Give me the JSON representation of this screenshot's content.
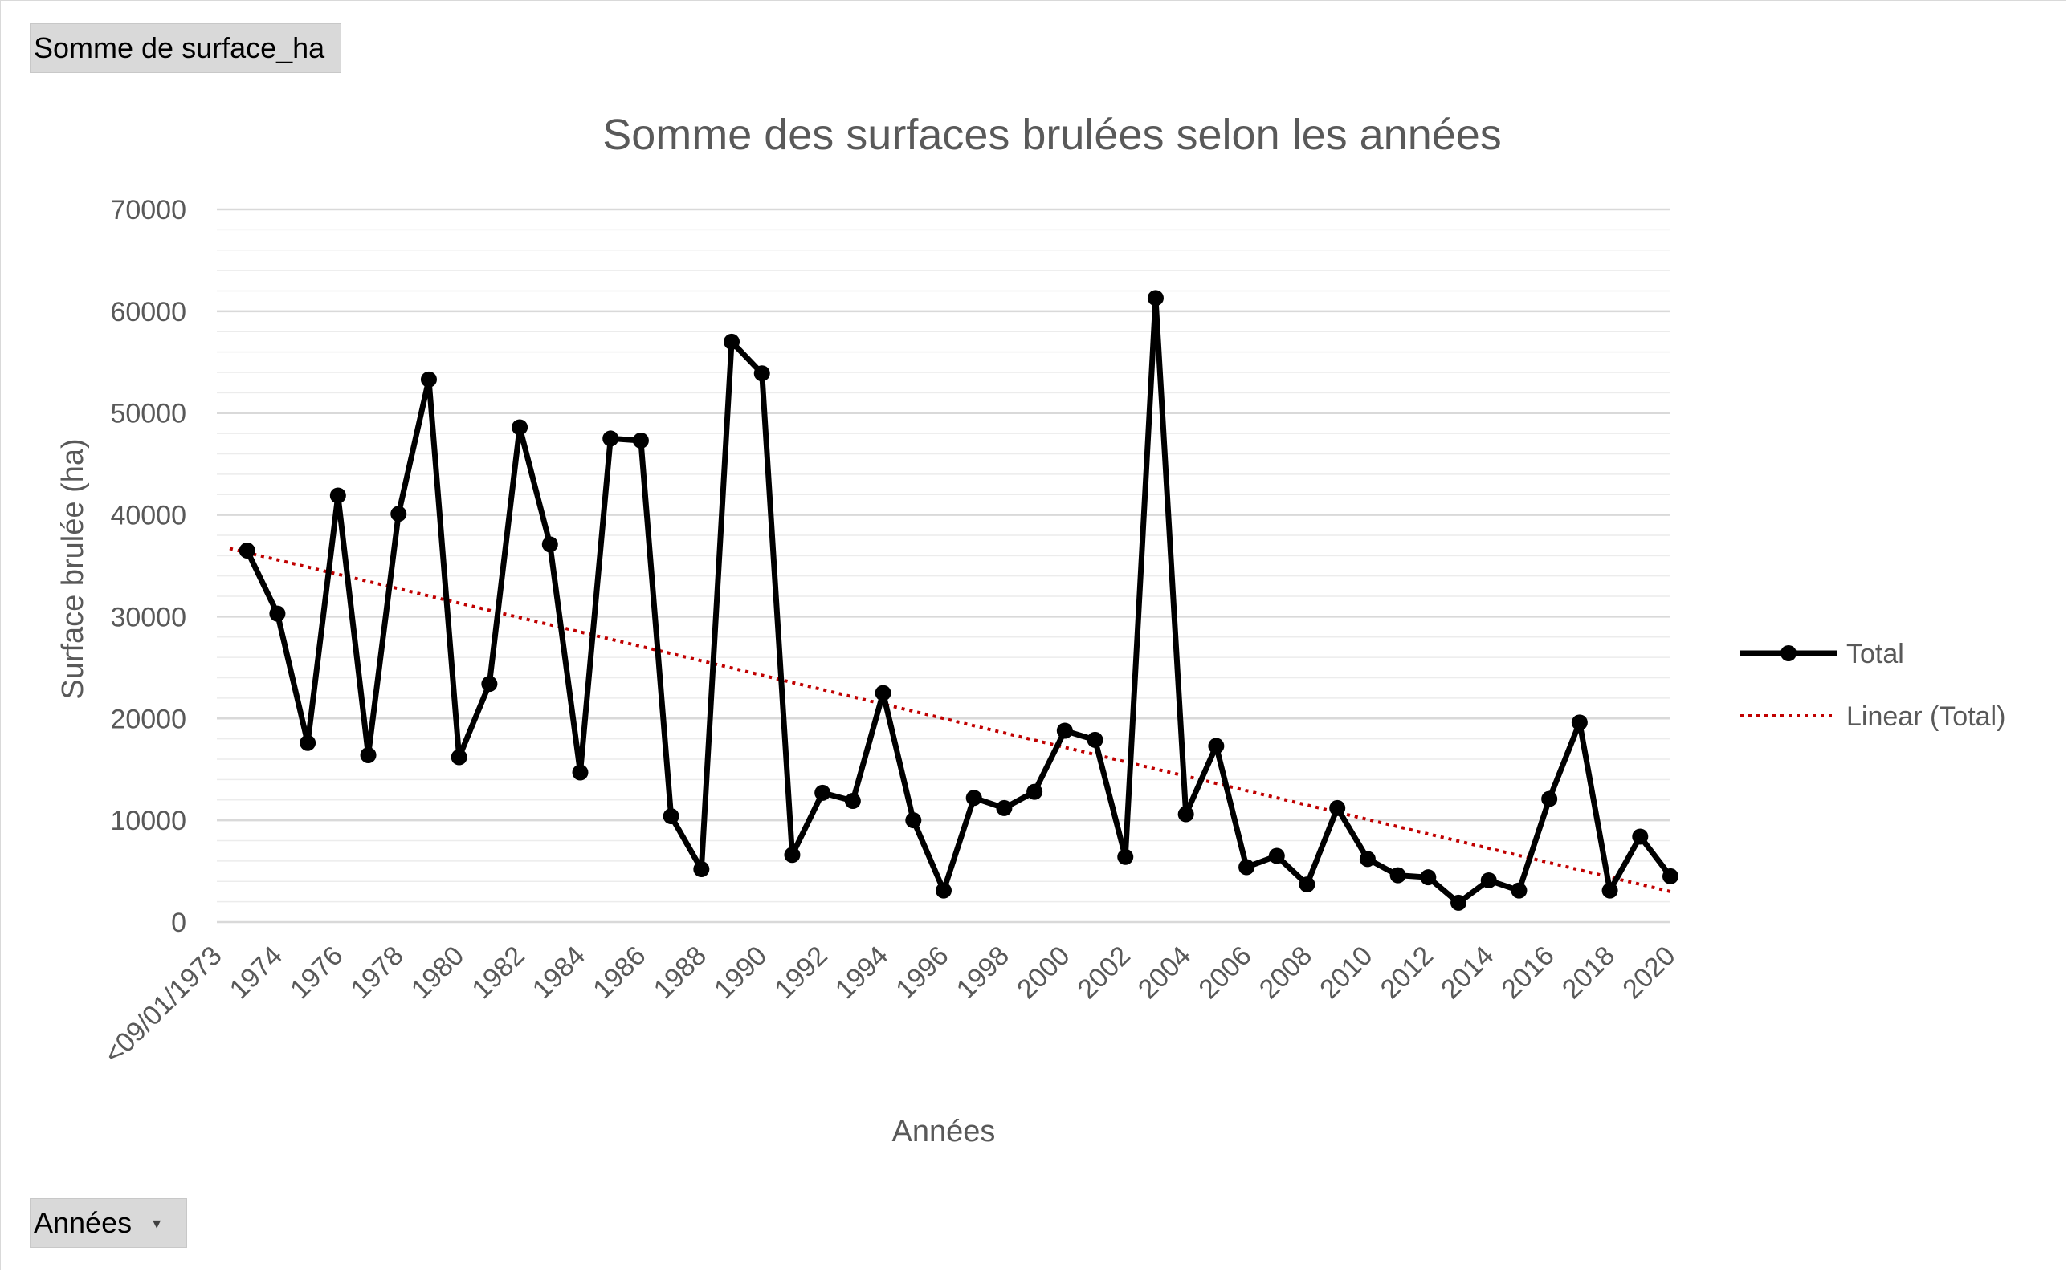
{
  "pivot": {
    "value_field": "Somme de surface_ha",
    "axis_field": "Années"
  },
  "chart_data": {
    "type": "line",
    "title": "Somme des surfaces brulées selon les années",
    "xlabel": "Années",
    "ylabel": "Surface brulée (ha)",
    "ylim": [
      0,
      70000
    ],
    "yticks": [
      0,
      10000,
      20000,
      30000,
      40000,
      50000,
      60000,
      70000
    ],
    "grid": true,
    "legend_position": "right",
    "x": [
      "<09/01/1973",
      "1973",
      "1974",
      "1975",
      "1976",
      "1977",
      "1978",
      "1979",
      "1980",
      "1981",
      "1982",
      "1983",
      "1984",
      "1985",
      "1986",
      "1987",
      "1988",
      "1989",
      "1990",
      "1991",
      "1992",
      "1993",
      "1994",
      "1995",
      "1996",
      "1997",
      "1998",
      "1999",
      "2000",
      "2001",
      "2002",
      "2003",
      "2004",
      "2005",
      "2006",
      "2007",
      "2008",
      "2009",
      "2010",
      "2011",
      "2012",
      "2013",
      "2014",
      "2015",
      "2016",
      "2017",
      "2018",
      "2019",
      "2020"
    ],
    "xtick_labels": [
      "<09/01/1973",
      "1974",
      "1976",
      "1978",
      "1980",
      "1982",
      "1984",
      "1986",
      "1988",
      "1990",
      "1992",
      "1994",
      "1996",
      "1998",
      "2000",
      "2002",
      "2004",
      "2006",
      "2008",
      "2010",
      "2012",
      "2014",
      "2016",
      "2018",
      "2020"
    ],
    "series": [
      {
        "name": "Total",
        "color": "#000000",
        "values": [
          null,
          36500,
          30300,
          17600,
          41900,
          16400,
          40100,
          53300,
          16200,
          23400,
          48600,
          37100,
          14700,
          47500,
          47300,
          10400,
          5200,
          57000,
          53900,
          6600,
          12700,
          11900,
          22500,
          10000,
          3100,
          12200,
          11200,
          12800,
          18800,
          17900,
          6400,
          61300,
          10600,
          17300,
          5400,
          6500,
          3700,
          11200,
          6200,
          4600,
          4400,
          1900,
          4100,
          3100,
          12100,
          19600,
          3100,
          8400,
          4500
        ]
      }
    ],
    "trendline": {
      "name": "Linear (Total)",
      "type": "linear",
      "color": "#c00000",
      "start": 36700,
      "end": 3000
    }
  }
}
